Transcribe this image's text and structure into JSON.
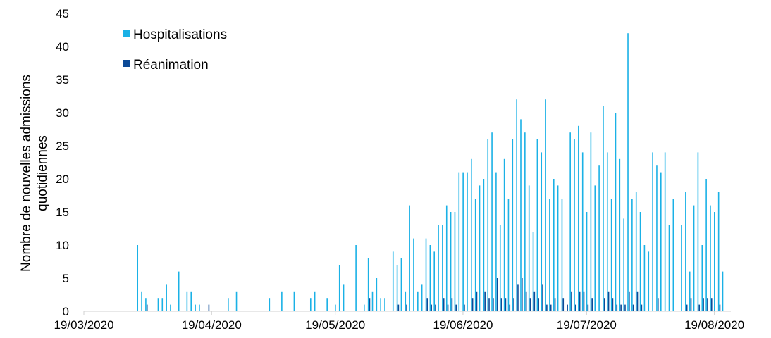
{
  "chart_data": {
    "type": "bar",
    "title": "",
    "xlabel": "",
    "ylabel": [
      "Nombre de nouvelles admissions",
      "quotidiennes"
    ],
    "ylim": [
      0,
      45
    ],
    "y_ticks": [
      0,
      5,
      10,
      15,
      20,
      25,
      30,
      35,
      40,
      45
    ],
    "x_range": [
      "2020-03-19",
      "2020-08-23"
    ],
    "x_tick_labels": [
      "19/03/2020",
      "19/04/2020",
      "19/05/2020",
      "19/06/2020",
      "19/07/2020",
      "19/08/2020"
    ],
    "x_tick_dates": [
      "2020-03-19",
      "2020-04-19",
      "2020-05-19",
      "2020-06-19",
      "2020-07-19",
      "2020-08-19"
    ],
    "grid": false,
    "legend_position": "top-left",
    "colors": {
      "hospitalisations": "#1ab1e6",
      "reanimation": "#0c4a97",
      "axis": "#d0d0d0"
    },
    "series": [
      {
        "name": "Hospitalisations",
        "points": [
          [
            "2020-04-01",
            10
          ],
          [
            "2020-04-02",
            3
          ],
          [
            "2020-04-03",
            2
          ],
          [
            "2020-04-06",
            2
          ],
          [
            "2020-04-07",
            2
          ],
          [
            "2020-04-08",
            4
          ],
          [
            "2020-04-09",
            1
          ],
          [
            "2020-04-11",
            6
          ],
          [
            "2020-04-13",
            3
          ],
          [
            "2020-04-14",
            3
          ],
          [
            "2020-04-15",
            1
          ],
          [
            "2020-04-16",
            1
          ],
          [
            "2020-04-23",
            2
          ],
          [
            "2020-04-25",
            3
          ],
          [
            "2020-05-03",
            2
          ],
          [
            "2020-05-06",
            3
          ],
          [
            "2020-05-09",
            3
          ],
          [
            "2020-05-13",
            2
          ],
          [
            "2020-05-14",
            3
          ],
          [
            "2020-05-17",
            2
          ],
          [
            "2020-05-19",
            1
          ],
          [
            "2020-05-20",
            7
          ],
          [
            "2020-05-21",
            4
          ],
          [
            "2020-05-24",
            10
          ],
          [
            "2020-05-26",
            1
          ],
          [
            "2020-05-27",
            8
          ],
          [
            "2020-05-28",
            3
          ],
          [
            "2020-05-29",
            5
          ],
          [
            "2020-05-30",
            2
          ],
          [
            "2020-05-31",
            2
          ],
          [
            "2020-06-02",
            9
          ],
          [
            "2020-06-03",
            7
          ],
          [
            "2020-06-04",
            8
          ],
          [
            "2020-06-05",
            3
          ],
          [
            "2020-06-06",
            16
          ],
          [
            "2020-06-07",
            11
          ],
          [
            "2020-06-08",
            3
          ],
          [
            "2020-06-09",
            4
          ],
          [
            "2020-06-10",
            11
          ],
          [
            "2020-06-11",
            10
          ],
          [
            "2020-06-12",
            9
          ],
          [
            "2020-06-13",
            13
          ],
          [
            "2020-06-14",
            13
          ],
          [
            "2020-06-15",
            16
          ],
          [
            "2020-06-16",
            15
          ],
          [
            "2020-06-17",
            15
          ],
          [
            "2020-06-18",
            21
          ],
          [
            "2020-06-19",
            21
          ],
          [
            "2020-06-20",
            21
          ],
          [
            "2020-06-21",
            23
          ],
          [
            "2020-06-22",
            17
          ],
          [
            "2020-06-23",
            19
          ],
          [
            "2020-06-24",
            20
          ],
          [
            "2020-06-25",
            26
          ],
          [
            "2020-06-26",
            27
          ],
          [
            "2020-06-27",
            21
          ],
          [
            "2020-06-28",
            13
          ],
          [
            "2020-06-29",
            23
          ],
          [
            "2020-06-30",
            17
          ],
          [
            "2020-07-01",
            26
          ],
          [
            "2020-07-02",
            32
          ],
          [
            "2020-07-03",
            29
          ],
          [
            "2020-07-04",
            27
          ],
          [
            "2020-07-05",
            19
          ],
          [
            "2020-07-06",
            12
          ],
          [
            "2020-07-07",
            26
          ],
          [
            "2020-07-08",
            24
          ],
          [
            "2020-07-09",
            32
          ],
          [
            "2020-07-10",
            17
          ],
          [
            "2020-07-11",
            20
          ],
          [
            "2020-07-12",
            19
          ],
          [
            "2020-07-13",
            17
          ],
          [
            "2020-07-15",
            27
          ],
          [
            "2020-07-16",
            26
          ],
          [
            "2020-07-17",
            28
          ],
          [
            "2020-07-18",
            24
          ],
          [
            "2020-07-19",
            15
          ],
          [
            "2020-07-20",
            27
          ],
          [
            "2020-07-21",
            19
          ],
          [
            "2020-07-22",
            22
          ],
          [
            "2020-07-23",
            31
          ],
          [
            "2020-07-24",
            24
          ],
          [
            "2020-07-25",
            17
          ],
          [
            "2020-07-26",
            30
          ],
          [
            "2020-07-27",
            23
          ],
          [
            "2020-07-28",
            14
          ],
          [
            "2020-07-29",
            42
          ],
          [
            "2020-07-30",
            17
          ],
          [
            "2020-07-31",
            18
          ],
          [
            "2020-08-01",
            15
          ],
          [
            "2020-08-02",
            10
          ],
          [
            "2020-08-03",
            9
          ],
          [
            "2020-08-04",
            24
          ],
          [
            "2020-08-05",
            22
          ],
          [
            "2020-08-06",
            21
          ],
          [
            "2020-08-07",
            24
          ],
          [
            "2020-08-08",
            13
          ],
          [
            "2020-08-09",
            17
          ],
          [
            "2020-08-11",
            13
          ],
          [
            "2020-08-12",
            18
          ],
          [
            "2020-08-13",
            6
          ],
          [
            "2020-08-14",
            16
          ],
          [
            "2020-08-15",
            24
          ],
          [
            "2020-08-16",
            10
          ],
          [
            "2020-08-17",
            20
          ],
          [
            "2020-08-18",
            16
          ],
          [
            "2020-08-19",
            15
          ],
          [
            "2020-08-20",
            18
          ],
          [
            "2020-08-21",
            6
          ]
        ]
      },
      {
        "name": "Réanimation",
        "points": [
          [
            "2020-04-03",
            1
          ],
          [
            "2020-04-18",
            1
          ],
          [
            "2020-05-27",
            2
          ],
          [
            "2020-06-03",
            1
          ],
          [
            "2020-06-05",
            1
          ],
          [
            "2020-06-10",
            2
          ],
          [
            "2020-06-11",
            1
          ],
          [
            "2020-06-12",
            1
          ],
          [
            "2020-06-14",
            2
          ],
          [
            "2020-06-15",
            1
          ],
          [
            "2020-06-16",
            2
          ],
          [
            "2020-06-17",
            1
          ],
          [
            "2020-06-19",
            1
          ],
          [
            "2020-06-21",
            2
          ],
          [
            "2020-06-22",
            3
          ],
          [
            "2020-06-24",
            3
          ],
          [
            "2020-06-25",
            2
          ],
          [
            "2020-06-26",
            2
          ],
          [
            "2020-06-27",
            5
          ],
          [
            "2020-06-28",
            2
          ],
          [
            "2020-06-29",
            2
          ],
          [
            "2020-06-30",
            1
          ],
          [
            "2020-07-01",
            2
          ],
          [
            "2020-07-02",
            4
          ],
          [
            "2020-07-03",
            5
          ],
          [
            "2020-07-04",
            3
          ],
          [
            "2020-07-05",
            2
          ],
          [
            "2020-07-06",
            3
          ],
          [
            "2020-07-07",
            2
          ],
          [
            "2020-07-08",
            4
          ],
          [
            "2020-07-09",
            1
          ],
          [
            "2020-07-10",
            1
          ],
          [
            "2020-07-11",
            2
          ],
          [
            "2020-07-13",
            2
          ],
          [
            "2020-07-14",
            1
          ],
          [
            "2020-07-15",
            3
          ],
          [
            "2020-07-16",
            1
          ],
          [
            "2020-07-17",
            3
          ],
          [
            "2020-07-18",
            3
          ],
          [
            "2020-07-19",
            1
          ],
          [
            "2020-07-20",
            2
          ],
          [
            "2020-07-23",
            2
          ],
          [
            "2020-07-24",
            3
          ],
          [
            "2020-07-25",
            2
          ],
          [
            "2020-07-26",
            1
          ],
          [
            "2020-07-27",
            1
          ],
          [
            "2020-07-28",
            1
          ],
          [
            "2020-07-29",
            3
          ],
          [
            "2020-07-30",
            1
          ],
          [
            "2020-07-31",
            3
          ],
          [
            "2020-08-01",
            1
          ],
          [
            "2020-08-05",
            2
          ],
          [
            "2020-08-12",
            1
          ],
          [
            "2020-08-13",
            2
          ],
          [
            "2020-08-15",
            1
          ],
          [
            "2020-08-16",
            2
          ],
          [
            "2020-08-17",
            2
          ],
          [
            "2020-08-18",
            2
          ],
          [
            "2020-08-20",
            1
          ]
        ]
      }
    ]
  }
}
